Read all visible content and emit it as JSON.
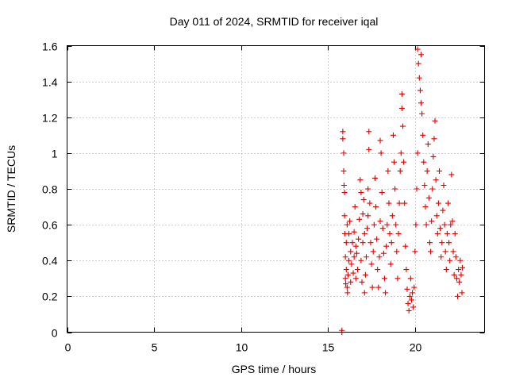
{
  "chart_data": {
    "type": "scatter",
    "title": "Day 011 of 2024, SRMTID for receiver iqal",
    "xlabel": "GPS time / hours",
    "ylabel": "SRMTID / TECUs",
    "xlim": [
      0,
      24
    ],
    "ylim": [
      0,
      1.6
    ],
    "xticks": [
      0,
      5,
      10,
      15,
      20
    ],
    "yticks": [
      0,
      0.2,
      0.4,
      0.6,
      0.8,
      1.0,
      1.2,
      1.4,
      1.6
    ],
    "xtick_labels": [
      "0",
      "5",
      "10",
      "15",
      "20"
    ],
    "ytick_labels": [
      "0",
      "0.2",
      "0.4",
      "0.6",
      "0.8",
      "1",
      "1.2",
      "1.4",
      "1.6"
    ],
    "grid": true,
    "marker": "+",
    "color": "#e00000",
    "series": [
      {
        "name": "iqal",
        "points": [
          [
            15.8,
            0.0
          ],
          [
            15.8,
            0.01
          ],
          [
            15.85,
            1.12
          ],
          [
            15.85,
            1.08
          ],
          [
            15.9,
            1.0
          ],
          [
            15.9,
            0.9
          ],
          [
            15.92,
            0.82
          ],
          [
            15.95,
            0.78
          ],
          [
            15.95,
            0.65
          ],
          [
            15.97,
            0.55
          ],
          [
            16.0,
            0.42
          ],
          [
            16.0,
            0.3
          ],
          [
            16.02,
            0.27
          ],
          [
            16.05,
            0.35
          ],
          [
            16.05,
            0.5
          ],
          [
            16.1,
            0.6
          ],
          [
            16.1,
            0.25
          ],
          [
            16.12,
            0.22
          ],
          [
            16.15,
            0.32
          ],
          [
            16.2,
            0.4
          ],
          [
            16.2,
            0.55
          ],
          [
            16.25,
            0.62
          ],
          [
            16.3,
            0.45
          ],
          [
            16.3,
            0.28
          ],
          [
            16.35,
            0.38
          ],
          [
            16.4,
            0.5
          ],
          [
            16.45,
            0.33
          ],
          [
            16.5,
            0.42
          ],
          [
            16.5,
            0.56
          ],
          [
            16.55,
            0.7
          ],
          [
            16.6,
            0.48
          ],
          [
            16.6,
            0.3
          ],
          [
            16.65,
            0.44
          ],
          [
            16.7,
            0.35
          ],
          [
            16.75,
            0.52
          ],
          [
            16.8,
            0.63
          ],
          [
            16.85,
            0.85
          ],
          [
            16.9,
            0.78
          ],
          [
            16.9,
            0.4
          ],
          [
            16.95,
            0.28
          ],
          [
            17.0,
            0.5
          ],
          [
            17.0,
            0.66
          ],
          [
            17.05,
            0.74
          ],
          [
            17.1,
            0.55
          ],
          [
            17.1,
            0.22
          ],
          [
            17.15,
            0.32
          ],
          [
            17.2,
            0.42
          ],
          [
            17.25,
            0.58
          ],
          [
            17.3,
            0.65
          ],
          [
            17.3,
            0.8
          ],
          [
            17.35,
            1.12
          ],
          [
            17.35,
            1.02
          ],
          [
            17.4,
            0.72
          ],
          [
            17.45,
            0.5
          ],
          [
            17.5,
            0.38
          ],
          [
            17.55,
            0.25
          ],
          [
            17.6,
            0.45
          ],
          [
            17.65,
            0.6
          ],
          [
            17.7,
            0.86
          ],
          [
            17.75,
            0.7
          ],
          [
            17.8,
            0.52
          ],
          [
            17.85,
            0.35
          ],
          [
            17.9,
            0.25
          ],
          [
            17.95,
            0.42
          ],
          [
            18.0,
            0.62
          ],
          [
            18.0,
            1.07
          ],
          [
            18.05,
            1.0
          ],
          [
            18.1,
            0.78
          ],
          [
            18.15,
            0.58
          ],
          [
            18.2,
            0.44
          ],
          [
            18.25,
            0.3
          ],
          [
            18.3,
            0.22
          ],
          [
            18.35,
            0.48
          ],
          [
            18.4,
            0.6
          ],
          [
            18.45,
            0.9
          ],
          [
            18.5,
            0.72
          ],
          [
            18.55,
            0.55
          ],
          [
            18.6,
            0.38
          ],
          [
            18.65,
            0.5
          ],
          [
            18.7,
            0.65
          ],
          [
            18.75,
            1.1
          ],
          [
            18.8,
            0.95
          ],
          [
            18.85,
            0.8
          ],
          [
            18.9,
            0.6
          ],
          [
            18.95,
            0.45
          ],
          [
            19.0,
            0.3
          ],
          [
            19.05,
            0.55
          ],
          [
            19.1,
            0.72
          ],
          [
            19.15,
            0.9
          ],
          [
            19.2,
            1.0
          ],
          [
            19.25,
            1.25
          ],
          [
            19.25,
            1.33
          ],
          [
            19.3,
            1.15
          ],
          [
            19.35,
            0.95
          ],
          [
            19.4,
            0.72
          ],
          [
            19.45,
            0.48
          ],
          [
            19.5,
            0.35
          ],
          [
            19.55,
            0.24
          ],
          [
            19.6,
            0.16
          ],
          [
            19.65,
            0.12
          ],
          [
            19.7,
            0.2
          ],
          [
            19.75,
            0.3
          ],
          [
            19.8,
            0.18
          ],
          [
            19.85,
            0.22
          ],
          [
            19.9,
            0.14
          ],
          [
            19.95,
            0.25
          ],
          [
            20.0,
            0.45
          ],
          [
            20.05,
            0.6
          ],
          [
            20.1,
            0.8
          ],
          [
            20.15,
            1.0
          ],
          [
            20.15,
            1.58
          ],
          [
            20.2,
            1.5
          ],
          [
            20.25,
            1.42
          ],
          [
            20.3,
            1.35
          ],
          [
            20.35,
            1.28
          ],
          [
            20.35,
            1.55
          ],
          [
            20.4,
            1.22
          ],
          [
            20.45,
            1.1
          ],
          [
            20.5,
            0.95
          ],
          [
            20.55,
            0.82
          ],
          [
            20.6,
            0.7
          ],
          [
            20.65,
            0.6
          ],
          [
            20.7,
            0.9
          ],
          [
            20.75,
            1.05
          ],
          [
            20.8,
            0.75
          ],
          [
            20.85,
            0.5
          ],
          [
            20.9,
            0.45
          ],
          [
            20.95,
            0.62
          ],
          [
            21.0,
            0.8
          ],
          [
            21.05,
            0.98
          ],
          [
            21.1,
            1.08
          ],
          [
            21.15,
            1.18
          ],
          [
            21.2,
            0.85
          ],
          [
            21.25,
            0.65
          ],
          [
            21.3,
            0.55
          ],
          [
            21.35,
            0.72
          ],
          [
            21.4,
            0.9
          ],
          [
            21.45,
            0.58
          ],
          [
            21.5,
            0.42
          ],
          [
            21.55,
            0.5
          ],
          [
            21.6,
            0.68
          ],
          [
            21.65,
            0.82
          ],
          [
            21.7,
            0.6
          ],
          [
            21.75,
            0.45
          ],
          [
            21.8,
            0.35
          ],
          [
            21.85,
            0.55
          ],
          [
            21.9,
            0.72
          ],
          [
            21.95,
            0.5
          ],
          [
            22.0,
            0.4
          ],
          [
            22.05,
            0.6
          ],
          [
            22.1,
            0.88
          ],
          [
            22.15,
            0.62
          ],
          [
            22.2,
            0.45
          ],
          [
            22.25,
            0.32
          ],
          [
            22.3,
            0.55
          ],
          [
            22.35,
            0.42
          ],
          [
            22.4,
            0.3
          ],
          [
            22.45,
            0.2
          ],
          [
            22.5,
            0.35
          ],
          [
            22.55,
            0.28
          ],
          [
            22.6,
            0.4
          ],
          [
            22.65,
            0.32
          ],
          [
            22.7,
            0.22
          ],
          [
            22.72,
            0.36
          ]
        ]
      }
    ]
  }
}
